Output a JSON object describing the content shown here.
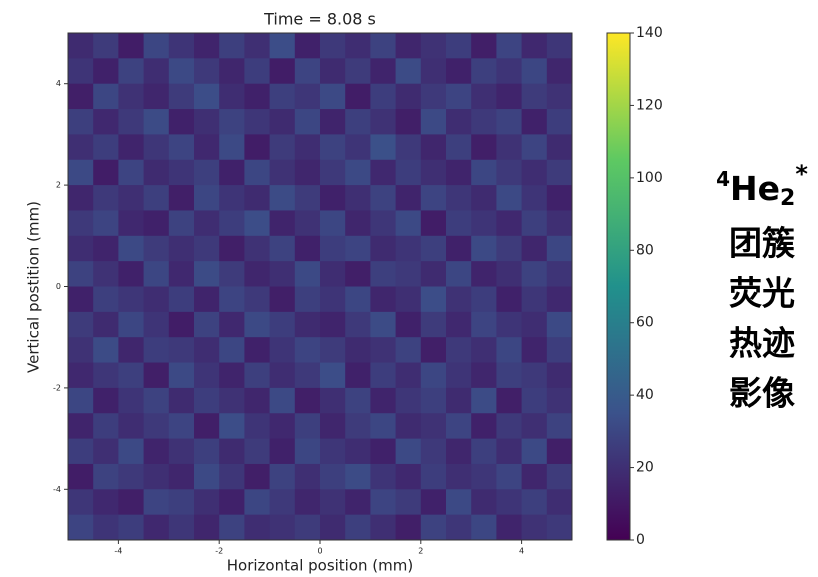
{
  "chart_data": {
    "type": "heatmap",
    "title": "Time = 8.08 s",
    "x_label": "Horizontal position (mm)",
    "y_label": "Vertical postition (mm)",
    "xlim": [
      -5,
      5
    ],
    "ylim": [
      -5,
      5
    ],
    "xticks": [
      -4,
      -2,
      0,
      2,
      4
    ],
    "yticks": [
      -4,
      -2,
      0,
      2,
      4
    ],
    "clim": [
      0,
      140
    ],
    "cticks": [
      0,
      20,
      40,
      60,
      80,
      100,
      120,
      140
    ],
    "colormap": [
      "#440154",
      "#3b528b",
      "#21918c",
      "#5ec962",
      "#fde725"
    ],
    "z": [
      [
        18,
        25,
        12,
        30,
        22,
        15,
        27,
        20,
        33,
        14,
        24,
        19,
        28,
        16,
        21,
        26,
        13,
        29,
        17,
        23
      ],
      [
        22,
        14,
        28,
        19,
        31,
        24,
        16,
        26,
        12,
        29,
        18,
        25,
        15,
        32,
        20,
        14,
        27,
        22,
        30,
        16
      ],
      [
        13,
        30,
        21,
        16,
        25,
        33,
        19,
        14,
        27,
        23,
        31,
        12,
        26,
        18,
        24,
        29,
        20,
        15,
        25,
        21
      ],
      [
        27,
        17,
        24,
        32,
        14,
        20,
        28,
        23,
        18,
        30,
        15,
        27,
        21,
        13,
        31,
        19,
        24,
        28,
        14,
        26
      ],
      [
        20,
        26,
        15,
        23,
        29,
        17,
        31,
        12,
        25,
        19,
        28,
        22,
        34,
        24,
        16,
        27,
        13,
        21,
        29,
        18
      ],
      [
        31,
        12,
        29,
        18,
        22,
        27,
        14,
        30,
        21,
        16,
        24,
        31,
        17,
        26,
        20,
        15,
        30,
        24,
        19,
        25
      ],
      [
        16,
        24,
        20,
        27,
        13,
        30,
        22,
        18,
        32,
        25,
        14,
        20,
        28,
        15,
        29,
        23,
        18,
        31,
        22,
        14
      ],
      [
        24,
        29,
        17,
        14,
        28,
        19,
        26,
        33,
        15,
        21,
        30,
        16,
        23,
        31,
        12,
        26,
        22,
        17,
        27,
        20
      ],
      [
        19,
        15,
        31,
        25,
        20,
        24,
        13,
        21,
        28,
        14,
        26,
        29,
        18,
        22,
        27,
        14,
        31,
        25,
        16,
        30
      ],
      [
        28,
        21,
        14,
        30,
        17,
        32,
        25,
        16,
        20,
        31,
        19,
        13,
        27,
        24,
        18,
        30,
        15,
        20,
        28,
        22
      ],
      [
        14,
        27,
        23,
        19,
        26,
        15,
        29,
        24,
        13,
        27,
        22,
        30,
        16,
        20,
        33,
        21,
        26,
        14,
        23,
        17
      ],
      [
        25,
        18,
        30,
        22,
        12,
        28,
        17,
        31,
        26,
        18,
        15,
        24,
        32,
        14,
        25,
        17,
        29,
        22,
        19,
        31
      ],
      [
        21,
        32,
        16,
        26,
        24,
        19,
        30,
        14,
        22,
        29,
        25,
        18,
        21,
        28,
        13,
        24,
        20,
        30,
        15,
        26
      ],
      [
        17,
        23,
        27,
        13,
        31,
        22,
        15,
        27,
        19,
        24,
        33,
        14,
        26,
        19,
        30,
        22,
        16,
        27,
        24,
        18
      ],
      [
        30,
        14,
        22,
        28,
        18,
        26,
        21,
        16,
        31,
        13,
        20,
        28,
        15,
        23,
        27,
        18,
        32,
        13,
        26,
        21
      ],
      [
        15,
        26,
        19,
        24,
        29,
        13,
        33,
        22,
        17,
        27,
        16,
        25,
        30,
        18,
        21,
        29,
        14,
        24,
        20,
        28
      ],
      [
        26,
        20,
        31,
        15,
        21,
        27,
        18,
        25,
        14,
        30,
        23,
        19,
        14,
        31,
        24,
        16,
        27,
        19,
        31,
        13
      ],
      [
        12,
        28,
        24,
        20,
        16,
        31,
        23,
        13,
        28,
        20,
        27,
        32,
        22,
        17,
        26,
        20,
        23,
        29,
        16,
        25
      ],
      [
        23,
        17,
        13,
        29,
        27,
        20,
        14,
        30,
        24,
        16,
        21,
        15,
        29,
        25,
        14,
        31,
        18,
        22,
        27,
        19
      ],
      [
        29,
        22,
        26,
        17,
        23,
        16,
        28,
        19,
        21,
        25,
        18,
        27,
        20,
        13,
        28,
        23,
        30,
        15,
        21,
        24
      ]
    ],
    "annotation": {
      "lines": [
        [
          "4",
          "He",
          "2",
          "*"
        ],
        [
          "团簇"
        ],
        [
          "荧光"
        ],
        [
          "热迹"
        ],
        [
          "影像"
        ]
      ]
    }
  }
}
